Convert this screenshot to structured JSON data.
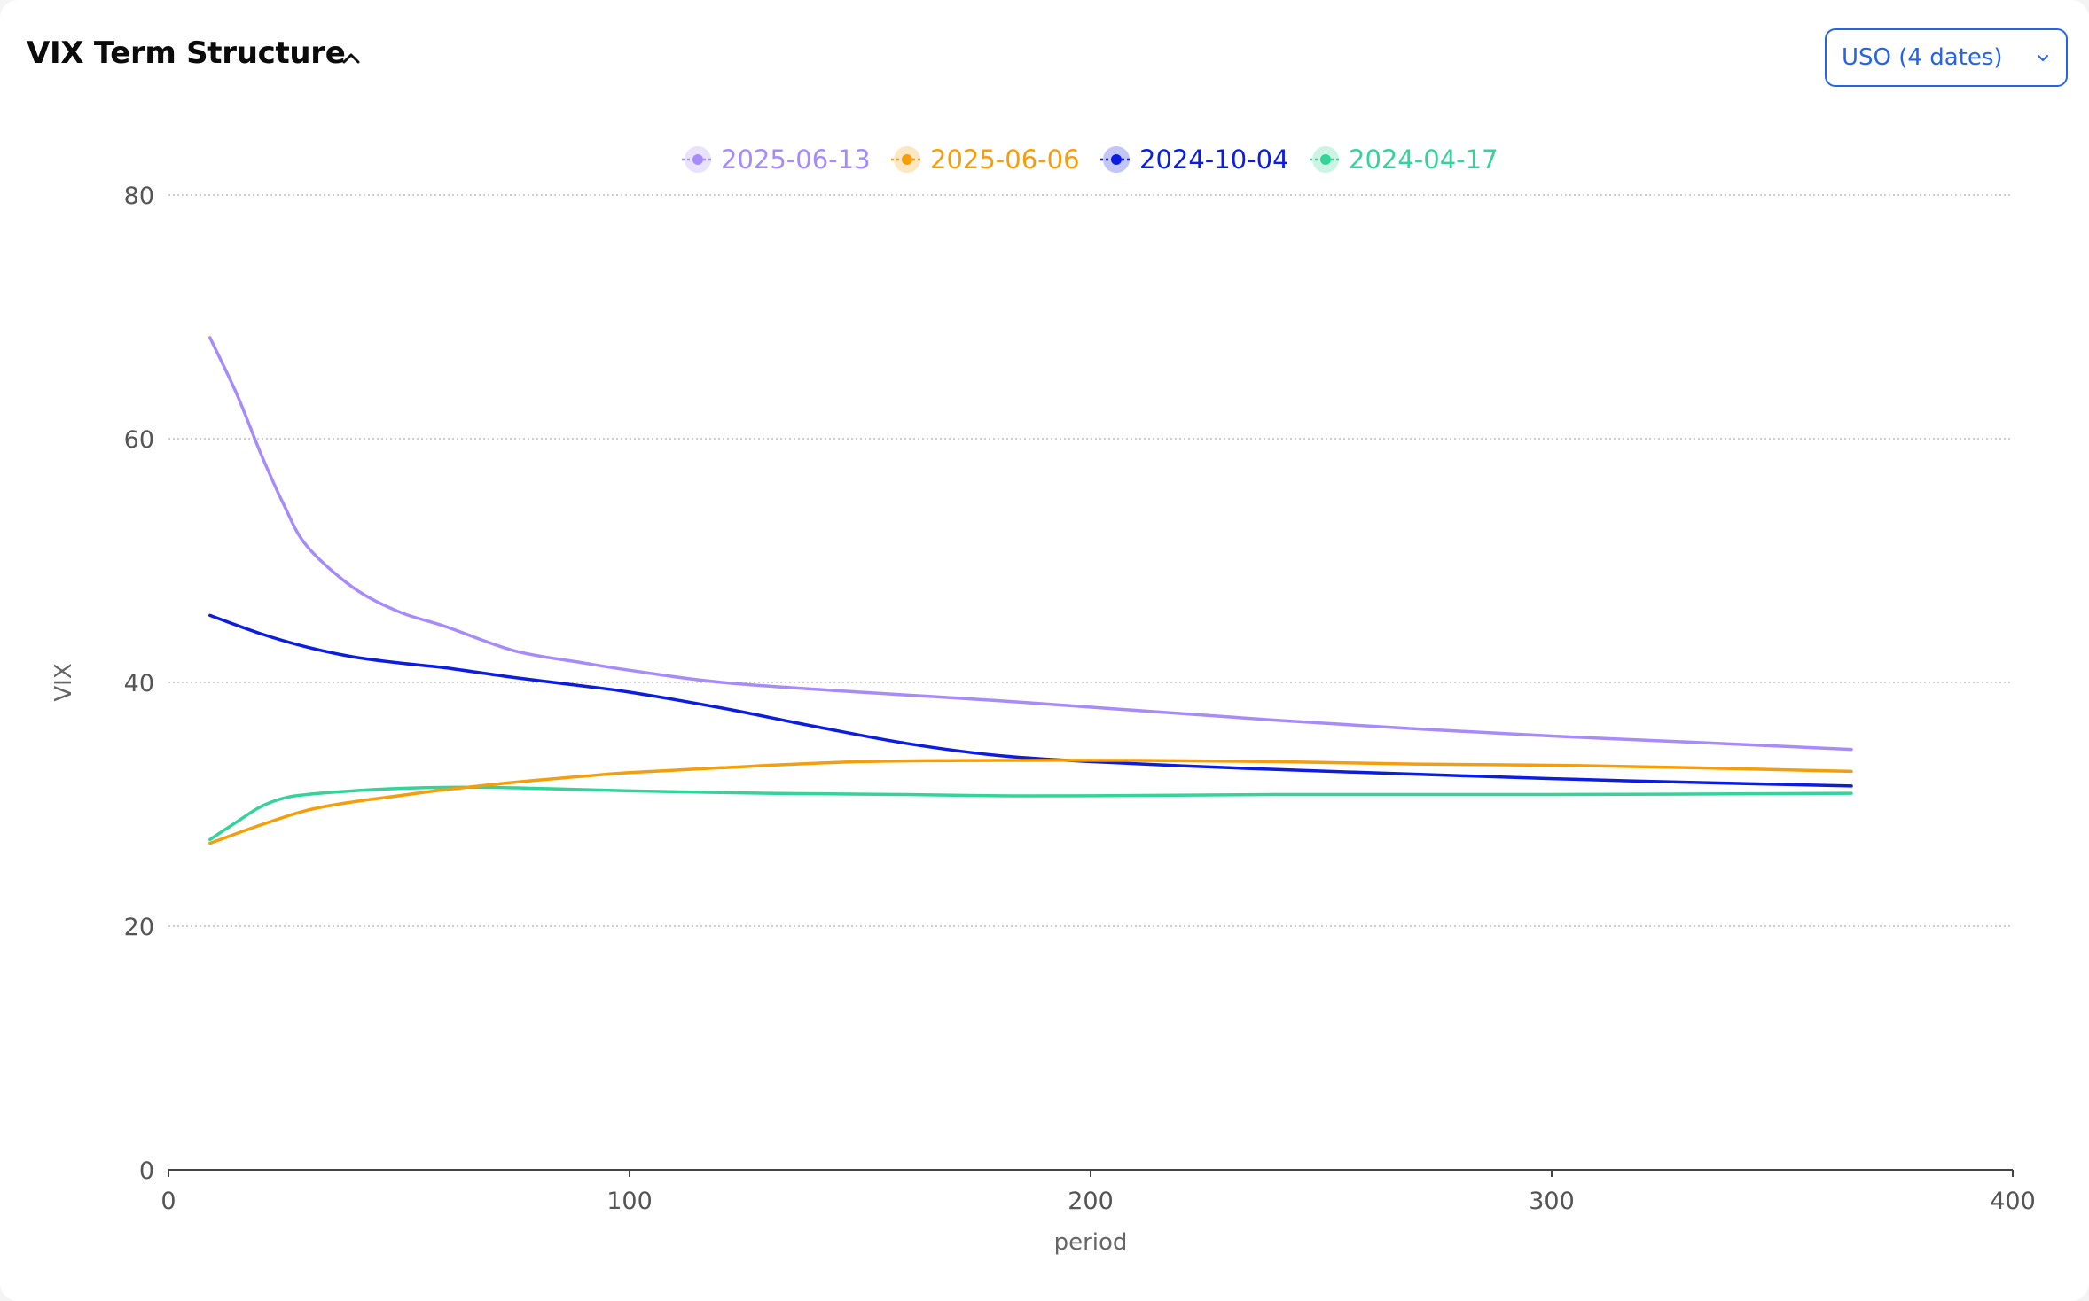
{
  "header": {
    "title": "VIX Term Structure",
    "collapse_icon": "chevron-up-icon"
  },
  "selector": {
    "label": "USO (4 dates)",
    "icon": "chevron-down-icon"
  },
  "chart_data": {
    "type": "line",
    "title": "",
    "xlabel": "period",
    "ylabel": "VIX",
    "xlim": [
      0,
      400
    ],
    "ylim": [
      0,
      80
    ],
    "xticks": [
      0,
      100,
      200,
      300,
      400
    ],
    "yticks": [
      0,
      20,
      40,
      60,
      80
    ],
    "grid": "horizontal dotted",
    "legend": "top-center",
    "series": [
      {
        "name": "2025-06-13",
        "color": "#a78bfa",
        "points": [
          [
            9,
            68.3
          ],
          [
            15,
            63.5
          ],
          [
            20,
            58.8
          ],
          [
            25,
            54.6
          ],
          [
            30,
            51.2
          ],
          [
            40,
            47.8
          ],
          [
            50,
            45.8
          ],
          [
            60,
            44.6
          ],
          [
            75,
            42.6
          ],
          [
            90,
            41.6
          ],
          [
            100,
            41.0
          ],
          [
            120,
            40.0
          ],
          [
            150,
            39.2
          ],
          [
            180,
            38.5
          ],
          [
            210,
            37.7
          ],
          [
            240,
            36.9
          ],
          [
            270,
            36.2
          ],
          [
            300,
            35.6
          ],
          [
            330,
            35.1
          ],
          [
            365,
            34.5
          ]
        ]
      },
      {
        "name": "2025-06-06",
        "color": "#f59e0b",
        "points": [
          [
            9,
            26.8
          ],
          [
            20,
            28.3
          ],
          [
            30,
            29.5
          ],
          [
            40,
            30.2
          ],
          [
            50,
            30.7
          ],
          [
            60,
            31.2
          ],
          [
            75,
            31.8
          ],
          [
            90,
            32.3
          ],
          [
            100,
            32.6
          ],
          [
            120,
            33.0
          ],
          [
            150,
            33.5
          ],
          [
            180,
            33.6
          ],
          [
            210,
            33.6
          ],
          [
            240,
            33.5
          ],
          [
            270,
            33.3
          ],
          [
            300,
            33.2
          ],
          [
            330,
            33.0
          ],
          [
            365,
            32.7
          ]
        ]
      },
      {
        "name": "2024-10-04",
        "color": "#0b1de0",
        "points": [
          [
            9,
            45.5
          ],
          [
            20,
            44.0
          ],
          [
            30,
            42.9
          ],
          [
            40,
            42.1
          ],
          [
            50,
            41.6
          ],
          [
            60,
            41.2
          ],
          [
            75,
            40.4
          ],
          [
            90,
            39.7
          ],
          [
            100,
            39.2
          ],
          [
            120,
            37.9
          ],
          [
            140,
            36.4
          ],
          [
            160,
            35.0
          ],
          [
            180,
            34.0
          ],
          [
            200,
            33.5
          ],
          [
            230,
            33.0
          ],
          [
            260,
            32.6
          ],
          [
            300,
            32.1
          ],
          [
            330,
            31.8
          ],
          [
            365,
            31.5
          ]
        ]
      },
      {
        "name": "2024-04-17",
        "color": "#34d399",
        "points": [
          [
            9,
            27.1
          ],
          [
            15,
            28.6
          ],
          [
            20,
            29.8
          ],
          [
            25,
            30.5
          ],
          [
            30,
            30.8
          ],
          [
            40,
            31.1
          ],
          [
            50,
            31.3
          ],
          [
            65,
            31.4
          ],
          [
            80,
            31.3
          ],
          [
            100,
            31.1
          ],
          [
            130,
            30.9
          ],
          [
            160,
            30.8
          ],
          [
            180,
            30.7
          ],
          [
            200,
            30.7
          ],
          [
            240,
            30.8
          ],
          [
            300,
            30.8
          ],
          [
            365,
            30.9
          ]
        ]
      }
    ]
  }
}
